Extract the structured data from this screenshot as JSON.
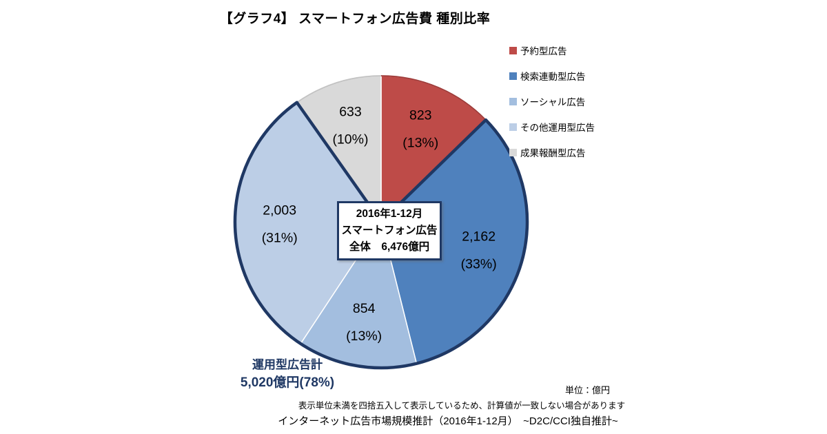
{
  "header": {
    "title": "【グラフ4】 スマートフォン広告費 種別比率"
  },
  "chart_data": {
    "type": "pie",
    "title": "スマートフォン広告費 種別比率",
    "period": "2016年1-12月",
    "unit": "億円",
    "total_value": 6476,
    "start_angle_deg": 0,
    "direction": "clockwise",
    "legend_position": "right",
    "label_color": "#000000",
    "group_outline_color": "#1F3864",
    "slices": [
      {
        "label": "予約型広告",
        "value": 823,
        "display_value": "823",
        "percent": "13%",
        "color": "#BE4B48",
        "edge": "#9E3B39",
        "in_group": false
      },
      {
        "label": "検索連動型広告",
        "value": 2162,
        "display_value": "2,162",
        "percent": "33%",
        "color": "#4F81BD",
        "in_group": true
      },
      {
        "label": "ソーシャル広告",
        "value": 854,
        "display_value": "854",
        "percent": "13%",
        "color": "#A3BEDF",
        "in_group": true
      },
      {
        "label": "その他運用型広告",
        "value": 2003,
        "display_value": "2,003",
        "percent": "31%",
        "color": "#BCCEE6",
        "in_group": true
      },
      {
        "label": "成果報酬型広告",
        "value": 633,
        "display_value": "633",
        "percent": "10%",
        "color": "#D9D9D9",
        "edge": "#C2C2C2",
        "in_group": false
      }
    ],
    "center_box": {
      "lines": [
        "2016年1-12月",
        "スマートフォン広告",
        "全体　6,476億円"
      ]
    },
    "group_total": {
      "line1": "運用型広告計",
      "line2": "5,020億円(78%)",
      "color": "#1F3864"
    }
  },
  "footnotes": {
    "unit": "単位：億円",
    "note": "表示単位未満を四捨五入して表示しているため、計算値が一致しない場合があります",
    "source": "インターネット広告市場規模推計（2016年1-12月）　~D2C/CCI独自推計~"
  }
}
